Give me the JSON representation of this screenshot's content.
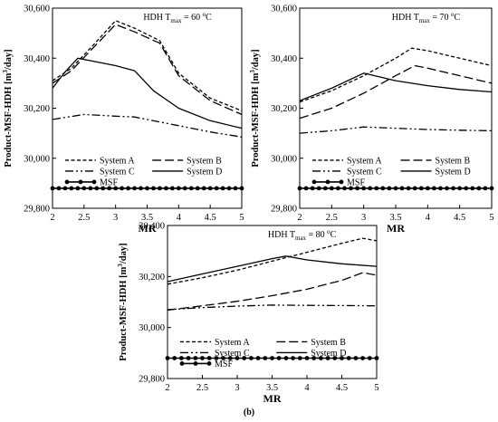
{
  "caption": "(b)",
  "legend": [
    "System A",
    "System B",
    "System C",
    "System D",
    "MSF"
  ],
  "chart_data": [
    {
      "type": "line",
      "annotation": "HDH T",
      "annotation_sub": "max",
      "annotation_rest": " = 60 ",
      "annotation_sup": "o",
      "annotation_unit": "C",
      "xlabel": "MR",
      "ylabel": "Product-MSF-HDH [m",
      "ylabel_sup": "3",
      "ylabel_rest": "/day]",
      "xlim": [
        2,
        5
      ],
      "ylim": [
        29800,
        30600
      ],
      "xticks": [
        2,
        2.5,
        3,
        3.5,
        4,
        4.5,
        5
      ],
      "yticks": [
        29800,
        30000,
        30200,
        30400,
        30600
      ],
      "xtick_labels": [
        "2",
        "2.5",
        "3",
        "3.5",
        "4",
        "4.5",
        "5"
      ],
      "ytick_labels": [
        "29,800",
        "30,000",
        "30,200",
        "30,400",
        "30,600"
      ],
      "series": [
        {
          "name": "System A",
          "x": [
            2,
            2.3,
            2.6,
            3,
            3.3,
            3.7,
            4,
            4.5,
            5
          ],
          "y": [
            30310,
            30360,
            30440,
            30550,
            30520,
            30470,
            30340,
            30240,
            30190
          ]
        },
        {
          "name": "System B",
          "x": [
            2,
            2.3,
            2.6,
            3,
            3.3,
            3.7,
            4,
            4.5,
            5
          ],
          "y": [
            30300,
            30350,
            30430,
            30535,
            30505,
            30460,
            30330,
            30230,
            30175
          ]
        },
        {
          "name": "System C",
          "x": [
            2,
            2.5,
            3,
            3.3,
            4,
            4.5,
            5
          ],
          "y": [
            30155,
            30175,
            30168,
            30165,
            30130,
            30105,
            30085
          ]
        },
        {
          "name": "System D",
          "x": [
            2,
            2.2,
            2.4,
            2.6,
            3,
            3.3,
            3.6,
            4,
            4.5,
            5
          ],
          "y": [
            30280,
            30345,
            30400,
            30390,
            30370,
            30350,
            30270,
            30200,
            30150,
            30120
          ]
        },
        {
          "name": "MSF",
          "x": [
            2,
            2.1,
            2.2,
            2.3,
            2.4,
            2.5,
            2.6,
            2.7,
            2.8,
            2.9,
            3,
            3.1,
            3.2,
            3.3,
            3.4,
            3.5,
            3.6,
            3.7,
            3.8,
            3.9,
            4,
            4.1,
            4.2,
            4.3,
            4.4,
            4.5,
            4.6,
            4.7,
            4.8,
            4.9,
            5
          ],
          "y": [
            29880,
            29880,
            29880,
            29880,
            29880,
            29880,
            29880,
            29880,
            29880,
            29880,
            29880,
            29880,
            29880,
            29880,
            29880,
            29880,
            29880,
            29880,
            29880,
            29880,
            29880,
            29880,
            29880,
            29880,
            29880,
            29880,
            29880,
            29880,
            29880,
            29880,
            29880
          ]
        }
      ]
    },
    {
      "type": "line",
      "annotation": "HDH T",
      "annotation_sub": "max",
      "annotation_rest": " = 70 ",
      "annotation_sup": "o",
      "annotation_unit": "C",
      "xlabel": "MR",
      "ylabel": "Product-MSF-HDH [m",
      "ylabel_sup": "3",
      "ylabel_rest": "/day]",
      "xlim": [
        2,
        5
      ],
      "ylim": [
        29800,
        30600
      ],
      "xticks": [
        2,
        2.5,
        3,
        3.5,
        4,
        4.5,
        5
      ],
      "yticks": [
        29800,
        30000,
        30200,
        30400,
        30600
      ],
      "xtick_labels": [
        "2",
        "2.5",
        "3",
        "3.5",
        "4",
        "4.5",
        "5"
      ],
      "ytick_labels": [
        "29,800",
        "30,000",
        "30,200",
        "30,400",
        "30,600"
      ],
      "series": [
        {
          "name": "System A",
          "x": [
            2,
            2.5,
            3,
            3.5,
            3.75,
            4,
            4.5,
            5
          ],
          "y": [
            30225,
            30270,
            30330,
            30400,
            30440,
            30430,
            30400,
            30370
          ]
        },
        {
          "name": "System B",
          "x": [
            2,
            2.5,
            3,
            3.5,
            3.8,
            4,
            4.5,
            5
          ],
          "y": [
            30160,
            30200,
            30260,
            30330,
            30370,
            30360,
            30330,
            30300
          ]
        },
        {
          "name": "System C",
          "x": [
            2,
            2.5,
            3,
            3.5,
            4,
            4.5,
            5
          ],
          "y": [
            30100,
            30110,
            30125,
            30120,
            30115,
            30112,
            30110
          ]
        },
        {
          "name": "System D",
          "x": [
            2,
            2.5,
            3,
            3.5,
            4,
            4.5,
            5
          ],
          "y": [
            30230,
            30280,
            30340,
            30310,
            30290,
            30275,
            30265
          ]
        },
        {
          "name": "MSF",
          "x": [
            2,
            2.1,
            2.2,
            2.3,
            2.4,
            2.5,
            2.6,
            2.7,
            2.8,
            2.9,
            3,
            3.1,
            3.2,
            3.3,
            3.4,
            3.5,
            3.6,
            3.7,
            3.8,
            3.9,
            4,
            4.1,
            4.2,
            4.3,
            4.4,
            4.5,
            4.6,
            4.7,
            4.8,
            4.9,
            5
          ],
          "y": [
            29880,
            29880,
            29880,
            29880,
            29880,
            29880,
            29880,
            29880,
            29880,
            29880,
            29880,
            29880,
            29880,
            29880,
            29880,
            29880,
            29880,
            29880,
            29880,
            29880,
            29880,
            29880,
            29880,
            29880,
            29880,
            29880,
            29880,
            29880,
            29880,
            29880,
            29880
          ]
        }
      ]
    },
    {
      "type": "line",
      "annotation": "HDH T",
      "annotation_sub": "max",
      "annotation_rest": " = 80 ",
      "annotation_sup": "o",
      "annotation_unit": "C",
      "xlabel": "MR",
      "ylabel": "Product-MSF-HDH [m",
      "ylabel_sup": "3",
      "ylabel_rest": "/day]",
      "xlim": [
        2,
        5
      ],
      "ylim": [
        29800,
        30400
      ],
      "xticks": [
        2,
        2.5,
        3,
        3.5,
        4,
        4.5,
        5
      ],
      "yticks": [
        29800,
        30000,
        30200,
        30400
      ],
      "xtick_labels": [
        "2",
        "2.5",
        "3",
        "3.5",
        "4",
        "4.5",
        "5"
      ],
      "ytick_labels": [
        "29,800",
        "30,000",
        "30,200",
        "30,400"
      ],
      "series": [
        {
          "name": "System A",
          "x": [
            2,
            2.5,
            3,
            3.5,
            4,
            4.5,
            4.8,
            5
          ],
          "y": [
            30170,
            30195,
            30225,
            30260,
            30295,
            30330,
            30350,
            30340
          ]
        },
        {
          "name": "System B",
          "x": [
            2,
            2.5,
            3,
            3.5,
            4,
            4.5,
            4.8,
            5
          ],
          "y": [
            30068,
            30085,
            30103,
            30125,
            30150,
            30185,
            30215,
            30205
          ]
        },
        {
          "name": "System C",
          "x": [
            2,
            2.5,
            3,
            3.5,
            4,
            4.5,
            5
          ],
          "y": [
            30070,
            30078,
            30084,
            30088,
            30087,
            30086,
            30085
          ]
        },
        {
          "name": "System D",
          "x": [
            2,
            2.5,
            3,
            3.5,
            3.7,
            4,
            4.5,
            5
          ],
          "y": [
            30180,
            30210,
            30240,
            30270,
            30280,
            30265,
            30250,
            30240
          ]
        },
        {
          "name": "MSF",
          "x": [
            2,
            2.1,
            2.2,
            2.3,
            2.4,
            2.5,
            2.6,
            2.7,
            2.8,
            2.9,
            3,
            3.1,
            3.2,
            3.3,
            3.4,
            3.5,
            3.6,
            3.7,
            3.8,
            3.9,
            4,
            4.1,
            4.2,
            4.3,
            4.4,
            4.5,
            4.6,
            4.7,
            4.8,
            4.9,
            5
          ],
          "y": [
            29880,
            29880,
            29880,
            29880,
            29880,
            29880,
            29880,
            29880,
            29880,
            29880,
            29880,
            29880,
            29880,
            29880,
            29880,
            29880,
            29880,
            29880,
            29880,
            29880,
            29880,
            29880,
            29880,
            29880,
            29880,
            29880,
            29880,
            29880,
            29880,
            29880,
            29880
          ]
        }
      ]
    }
  ]
}
